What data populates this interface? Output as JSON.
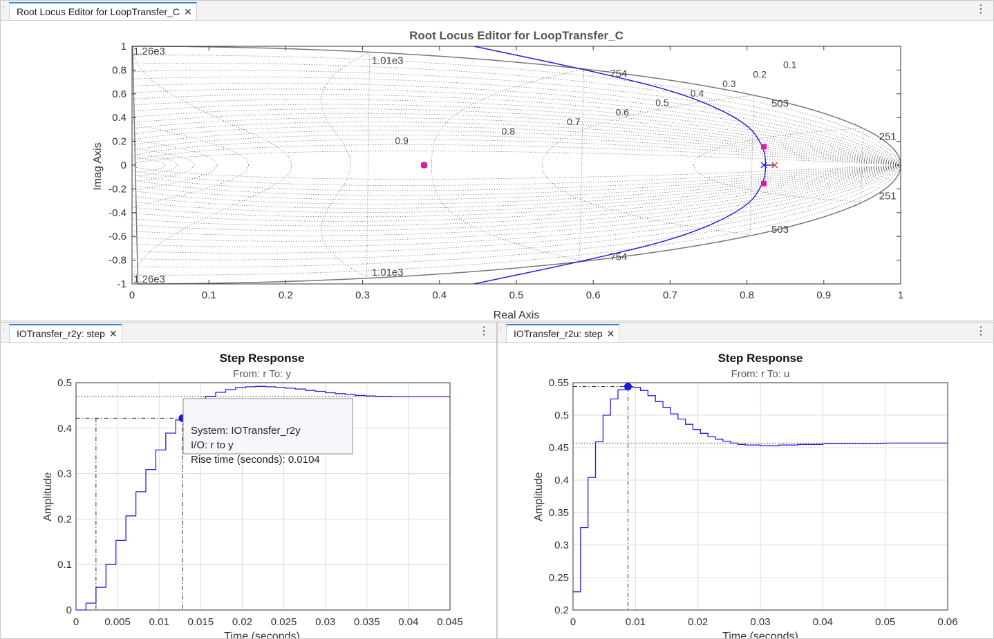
{
  "rootlocus": {
    "tab_label": "Root Locus Editor for LoopTransfer_C",
    "close_glyph": "✕",
    "menu_glyph": "⋮",
    "title": "Root Locus Editor for LoopTransfer_C",
    "xlabel": "Real Axis",
    "ylabel": "Imag Axis",
    "xticks": [
      "0",
      "0.1",
      "0.2",
      "0.3",
      "0.4",
      "0.5",
      "0.6",
      "0.7",
      "0.8",
      "0.9",
      "1"
    ],
    "yticks": [
      "1",
      "0.8",
      "0.6",
      "0.4",
      "0.2",
      "0",
      "-0.2",
      "-0.4",
      "-0.6",
      "-0.8",
      "-1"
    ],
    "damping_labels": [
      "0.1",
      "0.2",
      "0.3",
      "0.4",
      "0.5",
      "0.6",
      "0.7",
      "0.8",
      "0.9"
    ],
    "freq_labels": [
      "1.26e3",
      "1.01e3",
      "754",
      "503",
      "251",
      "251",
      "503",
      "754",
      "1.01e3",
      "1.26e3"
    ]
  },
  "step_r2y": {
    "tab_label": "IOTransfer_r2y: step",
    "close_glyph": "✕",
    "menu_glyph": "⋮",
    "title": "Step Response",
    "subtitle": "From: r  To: y",
    "xlabel": "Time (seconds)",
    "ylabel": "Amplitude",
    "xticks": [
      "0",
      "0.005",
      "0.01",
      "0.015",
      "0.02",
      "0.025",
      "0.03",
      "0.035",
      "0.04",
      "0.045"
    ],
    "yticks": [
      "0.5",
      "0.4",
      "0.3",
      "0.2",
      "0.1",
      "0"
    ],
    "datatip": {
      "system": "System:  IOTransfer_r2y",
      "io": "I/O:  r  to  y",
      "rise": "Rise  time  (seconds):  0.0104"
    }
  },
  "step_r2u": {
    "tab_label": "IOTransfer_r2u: step",
    "close_glyph": "✕",
    "menu_glyph": "⋮",
    "title": "Step Response",
    "subtitle": "From: r  To: u",
    "xlabel": "Time (seconds)",
    "ylabel": "Amplitude",
    "xticks": [
      "0",
      "0.01",
      "0.02",
      "0.03",
      "0.04",
      "0.05",
      "0.06"
    ],
    "yticks": [
      "0.55",
      "0.5",
      "0.45",
      "0.4",
      "0.35",
      "0.3",
      "0.25",
      "0.2"
    ]
  },
  "chart_data": [
    {
      "type": "line",
      "title": "Root Locus Editor for LoopTransfer_C",
      "xlabel": "Real Axis",
      "ylabel": "Imag Axis",
      "xlim": [
        0,
        1
      ],
      "ylim": [
        -1,
        1
      ],
      "grid": "zgrid (damping 0.1–0.9, natural frequency)",
      "locus_branch_points": [
        [
          0.43,
          1.02
        ],
        [
          0.6,
          0.79
        ],
        [
          0.72,
          0.6
        ],
        [
          0.8,
          0.36
        ],
        [
          0.822,
          0.15
        ],
        [
          0.825,
          0
        ],
        [
          0.822,
          -0.15
        ],
        [
          0.8,
          -0.36
        ],
        [
          0.72,
          -0.6
        ],
        [
          0.6,
          -0.79
        ],
        [
          0.43,
          -1.02
        ]
      ],
      "poles_x": [
        [
          0.822,
          0
        ],
        [
          0.836,
          0
        ]
      ],
      "zeros_o": [
        [
          0.38,
          0
        ]
      ],
      "closed_loop_poles": [
        [
          0.822,
          0.155
        ],
        [
          0.822,
          -0.155
        ],
        [
          0.38,
          0
        ]
      ]
    },
    {
      "type": "line",
      "title": "Step Response",
      "subtitle": "From: r  To: y",
      "xlabel": "Time (seconds)",
      "ylabel": "Amplitude",
      "xlim": [
        0,
        0.045
      ],
      "ylim": [
        0,
        0.5
      ],
      "steady_state": 0.469,
      "rise_time_marker": {
        "t_start": 0.0024,
        "t_end": 0.0128,
        "y": 0.422
      },
      "t": [
        0,
        0.0012,
        0.0024,
        0.0036,
        0.0048,
        0.006,
        0.0072,
        0.0084,
        0.0096,
        0.0108,
        0.012,
        0.0132,
        0.0144,
        0.0156,
        0.0168,
        0.018,
        0.0192,
        0.0204,
        0.0216,
        0.0228,
        0.024,
        0.0252,
        0.0264,
        0.0276,
        0.0288,
        0.03,
        0.0312,
        0.0324,
        0.0336,
        0.0348,
        0.036,
        0.038,
        0.04,
        0.045
      ],
      "y": [
        0.0,
        0.015,
        0.05,
        0.1,
        0.153,
        0.207,
        0.26,
        0.309,
        0.352,
        0.389,
        0.418,
        0.441,
        0.458,
        0.47,
        0.479,
        0.485,
        0.489,
        0.491,
        0.492,
        0.491,
        0.49,
        0.488,
        0.486,
        0.483,
        0.481,
        0.478,
        0.476,
        0.474,
        0.472,
        0.471,
        0.47,
        0.469,
        0.469,
        0.469
      ]
    },
    {
      "type": "line",
      "title": "Step Response",
      "subtitle": "From: r  To: u",
      "xlabel": "Time (seconds)",
      "ylabel": "Amplitude",
      "xlim": [
        0,
        0.06
      ],
      "ylim": [
        0.2,
        0.55
      ],
      "steady_state": 0.457,
      "peak_marker": {
        "t": 0.0088,
        "y": 0.544
      },
      "t": [
        0,
        0.0012,
        0.0024,
        0.0036,
        0.0048,
        0.006,
        0.0072,
        0.0084,
        0.0096,
        0.0108,
        0.012,
        0.0132,
        0.0144,
        0.0156,
        0.0168,
        0.018,
        0.0192,
        0.0204,
        0.0216,
        0.0228,
        0.024,
        0.0252,
        0.0264,
        0.0276,
        0.03,
        0.033,
        0.036,
        0.04,
        0.05,
        0.06
      ],
      "y": [
        0.228,
        0.327,
        0.404,
        0.459,
        0.5,
        0.525,
        0.539,
        0.544,
        0.543,
        0.538,
        0.53,
        0.521,
        0.512,
        0.502,
        0.494,
        0.486,
        0.478,
        0.472,
        0.467,
        0.463,
        0.46,
        0.457,
        0.455,
        0.454,
        0.453,
        0.454,
        0.455,
        0.456,
        0.457,
        0.457
      ]
    }
  ]
}
